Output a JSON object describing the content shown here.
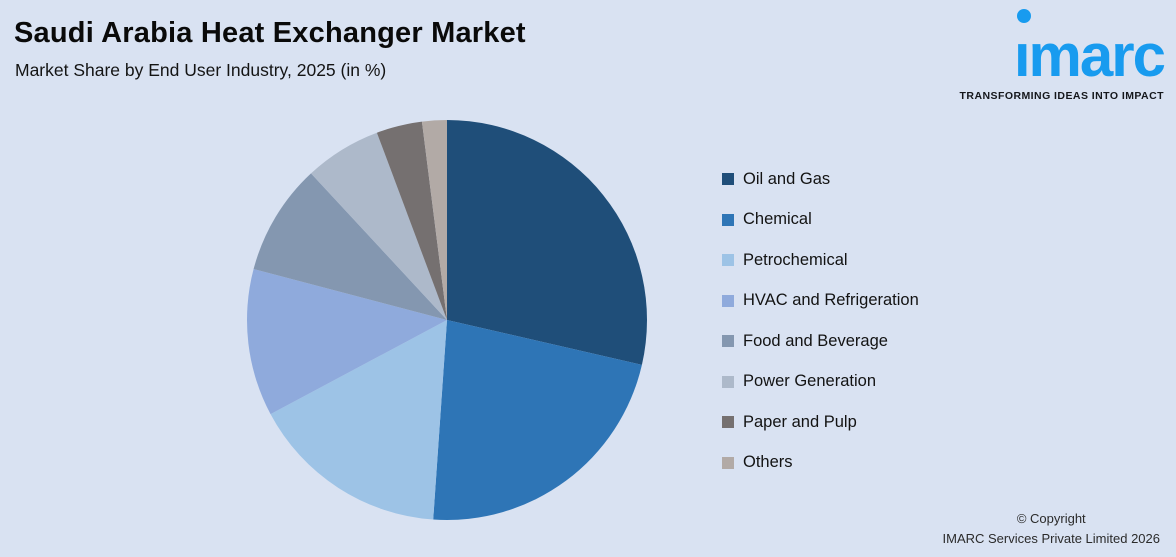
{
  "header": {
    "title": "Saudi Arabia Heat Exchanger Market",
    "subtitle": "Market Share by End User Industry, 2025 (in %)"
  },
  "logo": {
    "brand": "ımarc",
    "tagline": "TRANSFORMING IDEAS INTO IMPACT",
    "brand_color": "#189BEF"
  },
  "chart_data": {
    "type": "pie",
    "title": "Saudi Arabia Heat Exchanger Market",
    "subtitle": "Market Share by End User Industry, 2025 (in %)",
    "unit": "%",
    "start_angle_deg": 0,
    "direction": "clockwise",
    "legend_position": "right",
    "values_shown_on_chart": false,
    "series": [
      {
        "name": "Oil and Gas",
        "value": 28.6,
        "color": "#1F4E79"
      },
      {
        "name": "Chemical",
        "value": 22.5,
        "color": "#2E75B6"
      },
      {
        "name": "Petrochemical",
        "value": 16.1,
        "color": "#9DC3E6"
      },
      {
        "name": "HVAC and Refrigeration",
        "value": 11.9,
        "color": "#8FAADC"
      },
      {
        "name": "Food and Beverage",
        "value": 9.0,
        "color": "#8497B0"
      },
      {
        "name": "Power Generation",
        "value": 6.2,
        "color": "#ADB9CA"
      },
      {
        "name": "Paper and Pulp",
        "value": 3.7,
        "color": "#757070"
      },
      {
        "name": "Others",
        "value": 2.0,
        "color": "#B2AAA6"
      }
    ]
  },
  "footer": {
    "copyright_line1": "© Copyright",
    "copyright_line2": "IMARC Services Private Limited 2026"
  },
  "background_color": "#D9E2F2"
}
